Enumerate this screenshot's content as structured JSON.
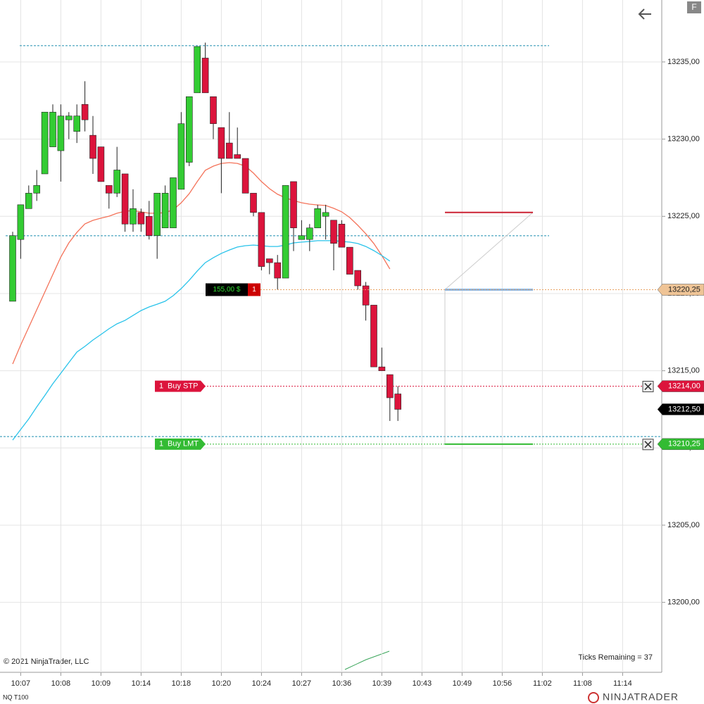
{
  "chart_data": {
    "type": "candlestick",
    "instrument": "NQ T100",
    "up_color": "#33cc33",
    "down_color": "#dc143c",
    "open": [
      13219.5,
      13223.5,
      13225.5,
      13226.5,
      13227.75,
      13229.5,
      13229.25,
      13231.25,
      13230.5,
      13232.25,
      13230.25,
      13229.5,
      13227,
      13226.5,
      13227.75,
      13224.5,
      13225.25,
      13225,
      13223.75,
      13224.25,
      13224.25,
      13226.75,
      13228.5,
      13233,
      13235.25,
      13232.75,
      13230.75,
      13229.75,
      13229,
      13228.75,
      13226.5,
      13225.25,
      13222.25,
      13222,
      13221,
      13227.25,
      13223.5,
      13223.5,
      13224.25,
      13225,
      13224.75,
      13224.5,
      13223,
      13221.5,
      13220.5,
      13219.25,
      13215.25,
      13214.75,
      13213.5
    ],
    "high": [
      13224,
      13225.75,
      13227,
      13228,
      13231.75,
      13232.25,
      13232.25,
      13231.75,
      13232.25,
      13233.75,
      13231.5,
      13229.5,
      13227,
      13229.5,
      13227.75,
      13226.75,
      13225.5,
      13226,
      13226.5,
      13227,
      13227.5,
      13231.75,
      13232.75,
      13236,
      13236.25,
      13232.75,
      13230.75,
      13231.75,
      13230.75,
      13228.75,
      13226.5,
      13225.25,
      13222.25,
      13222.5,
      13227,
      13227.25,
      13224.75,
      13224.5,
      13225.75,
      13225.75,
      13224.75,
      13224.75,
      13223,
      13221.5,
      13220.75,
      13219.25,
      13216.5,
      13214.75,
      13214
    ],
    "low": [
      13219.5,
      13222.25,
      13225.5,
      13226,
      13227.75,
      13229.5,
      13227.25,
      13230,
      13229.75,
      13230.5,
      13227.75,
      13227.25,
      13225.5,
      13226.25,
      13224,
      13224,
      13224,
      13223.5,
      13222.25,
      13224.25,
      13224.25,
      13226.75,
      13228.25,
      13233,
      13233,
      13230,
      13226.5,
      13228.75,
      13228.75,
      13226.5,
      13225,
      13221.5,
      13221.25,
      13220.25,
      13221,
      13222.75,
      13223.5,
      13222.75,
      13224.25,
      13223.5,
      13221.5,
      13223,
      13221.25,
      13220.25,
      13218.25,
      13215.25,
      13215,
      13211.75,
      13211.75
    ],
    "close": [
      13223.75,
      13225.75,
      13226.5,
      13227,
      13231.75,
      13231.75,
      13231.5,
      13231.5,
      13231.5,
      13231.25,
      13228.75,
      13227.25,
      13226.5,
      13228,
      13224.5,
      13225.5,
      13224.5,
      13223.75,
      13226.5,
      13226.5,
      13227.5,
      13231,
      13232.75,
      13236,
      13233,
      13231,
      13228.75,
      13228.75,
      13228.75,
      13226.5,
      13225.25,
      13221.75,
      13222,
      13221,
      13227,
      13224.25,
      13223.75,
      13224.25,
      13225.5,
      13225.25,
      13223.25,
      13223,
      13221.25,
      13220.5,
      13219.25,
      13215.25,
      13215,
      13213.25,
      13212.5
    ],
    "series": [
      {
        "color": "#f4735a",
        "values": [
          13215.44,
          13216.67,
          13217.81,
          13218.95,
          13220.09,
          13221.23,
          13222.37,
          13223.28,
          13223.96,
          13224.51,
          13224.74,
          13224.88,
          13225.01,
          13225.2,
          13225.33,
          13225.38,
          13225.29,
          13225.2,
          13225.2,
          13225.24,
          13225.42,
          13225.88,
          13226.47,
          13227.25,
          13227.98,
          13228.25,
          13228.43,
          13228.48,
          13228.43,
          13228.25,
          13227.8,
          13227.25,
          13226.79,
          13226.43,
          13226.2,
          13226.02,
          13225.88,
          13225.79,
          13225.74,
          13225.7,
          13225.52,
          13225.29,
          13224.92,
          13224.42,
          13223.87,
          13223.24,
          13222.46,
          13221.59,
          null
        ]
      },
      {
        "color": "#29c3ea",
        "values": [
          13210.51,
          13211.2,
          13211.88,
          13212.66,
          13213.39,
          13214.16,
          13214.84,
          13215.53,
          13216.21,
          13216.58,
          13216.99,
          13217.35,
          13217.72,
          13218.04,
          13218.26,
          13218.58,
          13218.9,
          13219.13,
          13219.31,
          13219.5,
          13219.86,
          13220.32,
          13220.86,
          13221.46,
          13222,
          13222.32,
          13222.6,
          13222.82,
          13223.01,
          13223.1,
          13223.14,
          13223.1,
          13223.05,
          13223.05,
          13223.14,
          13223.28,
          13223.33,
          13223.37,
          13223.42,
          13223.42,
          13223.42,
          13223.37,
          13223.33,
          13223.24,
          13223.05,
          13222.78,
          13222.46,
          13222.1,
          null
        ]
      }
    ],
    "xtick_labels": [
      "10:07",
      "10:08",
      "10:09",
      "10:14",
      "10:18",
      "10:20",
      "10:24",
      "10:27",
      "10:36",
      "10:39",
      "10:43",
      "10:49",
      "10:56",
      "11:02",
      "11:08",
      "11:14"
    ],
    "ylim": [
      13195.47,
      13239.01
    ],
    "yticks": [
      {
        "value": 13200,
        "label": "13200,00"
      },
      {
        "value": 13205,
        "label": "13205,00"
      },
      {
        "value": 13210,
        "label": "13210,00"
      },
      {
        "value": 13215,
        "label": "13215,00"
      },
      {
        "value": 13220,
        "label": "13220,00"
      },
      {
        "value": 13225,
        "label": "13225,00"
      },
      {
        "value": 13230,
        "label": "13230,00"
      },
      {
        "value": 13235,
        "label": "13235,00"
      }
    ],
    "grid": true,
    "levels": [
      {
        "value": 13236.05,
        "color": "#1f8fb0"
      },
      {
        "value": 13223.74,
        "color": "#1f8fb0"
      },
      {
        "value": 13210.74,
        "color": "#1f8fb0"
      }
    ],
    "position": {
      "pnl": "155,00 $",
      "quantity": 1,
      "price": {
        "value": 13220.25,
        "label": "13220,25"
      }
    },
    "orders": [
      {
        "quantity": 1,
        "type": "Buy STP",
        "color": "#dc143c",
        "price": {
          "value": 13214,
          "label": "13214,00"
        }
      },
      {
        "quantity": 1,
        "type": "Buy LMT",
        "color": "#33bb33",
        "price": {
          "value": 13210.25,
          "label": "13210,25"
        }
      }
    ],
    "last_price": {
      "value": 13212.5,
      "label": "13212,50"
    },
    "risk_reward": {
      "target": 13225.25,
      "entry": 13220.25,
      "stop": 13210.25
    },
    "copyright": "© 2021 NinjaTrader, LLC",
    "ticks_remaining": "Ticks Remaining = 37",
    "brand": "NINJATRADER",
    "button": "F"
  }
}
